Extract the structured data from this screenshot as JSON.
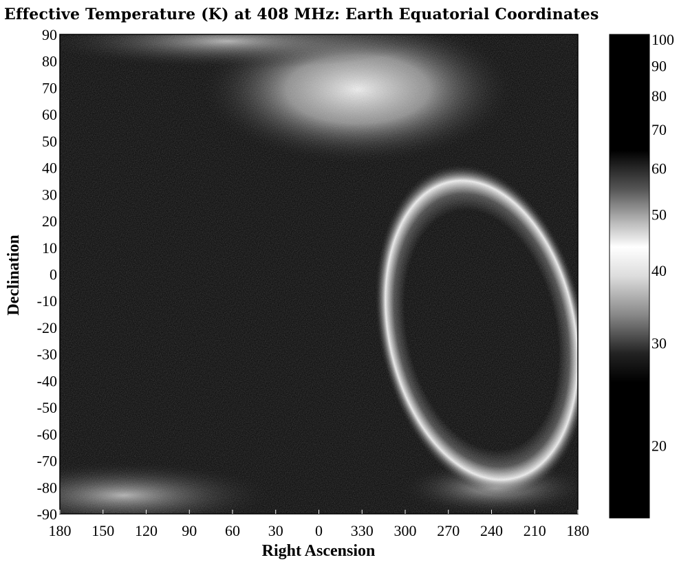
{
  "chart_data": {
    "type": "heatmap",
    "title": "Effective Temperature (K) at 408 MHz: Earth Equatorial Coordinates",
    "xlabel": "Right Ascension",
    "ylabel": "Declination",
    "x_ticks": [
      "180",
      "150",
      "120",
      "90",
      "60",
      "30",
      "0",
      "330",
      "300",
      "270",
      "240",
      "210",
      "180"
    ],
    "y_ticks": [
      "90",
      "80",
      "70",
      "60",
      "50",
      "40",
      "30",
      "20",
      "10",
      "0",
      "-10",
      "-20",
      "-30",
      "-40",
      "-50",
      "-60",
      "-70",
      "-80",
      "-90"
    ],
    "xlim": [
      180,
      -180
    ],
    "ylim": [
      -90,
      90
    ],
    "colorbar": {
      "ticks": [
        "100",
        "90",
        "80",
        "70",
        "60",
        "50",
        "40",
        "30",
        "20"
      ],
      "min": 15,
      "max": 100,
      "scale": "log"
    },
    "features": {
      "galactic_plane_loop_center": {
        "ra": 260,
        "dec": -25
      },
      "north_lobe_peak": {
        "ra": 300,
        "dec": 70
      },
      "south_edge_peak": {
        "ra": 120,
        "dec": -80
      }
    }
  }
}
